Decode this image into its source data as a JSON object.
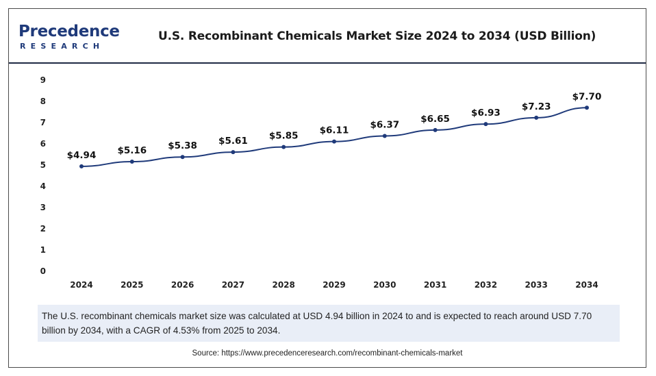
{
  "logo": {
    "word": "Precedence",
    "sub": "RESEARCH"
  },
  "header": {
    "title": "U.S. Recombinant Chemicals Market Size 2024 to 2034 (USD Billion)"
  },
  "chart_data": {
    "type": "line",
    "title": "U.S. Recombinant Chemicals Market Size 2024 to 2034 (USD Billion)",
    "xlabel": "",
    "ylabel": "",
    "categories": [
      "2024",
      "2025",
      "2026",
      "2027",
      "2028",
      "2029",
      "2030",
      "2031",
      "2032",
      "2033",
      "2034"
    ],
    "values": [
      4.94,
      5.16,
      5.38,
      5.61,
      5.85,
      6.11,
      6.37,
      6.65,
      6.93,
      7.23,
      7.7
    ],
    "data_labels": [
      "$4.94",
      "$5.16",
      "$5.38",
      "$5.61",
      "$5.85",
      "$6.11",
      "$6.37",
      "$6.65",
      "$6.93",
      "$7.23",
      "$7.70"
    ],
    "yticks": [
      "0",
      "1",
      "2",
      "3",
      "4",
      "5",
      "6",
      "7",
      "8",
      "9"
    ],
    "ylim": [
      0,
      9
    ],
    "grid": false,
    "legend": "none",
    "line_color": "#1f3a7a"
  },
  "summary": {
    "text": "The U.S. recombinant chemicals market size was calculated at USD 4.94 billion in 2024 to and is expected to reach around USD 7.70 billion by 2034, with a CAGR of 4.53% from 2025 to 2034."
  },
  "source": {
    "text": "Source: https://www.precedenceresearch.com/recombinant-chemicals-market"
  }
}
